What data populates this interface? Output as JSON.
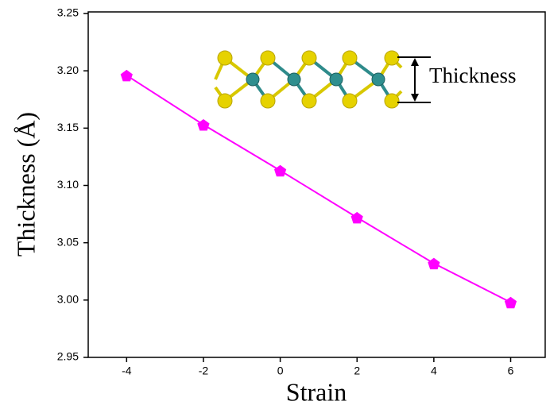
{
  "chart_data": {
    "type": "line",
    "xlabel": "Strain",
    "ylabel": "Thickness (Å)",
    "annotation": "Thickness",
    "x": [
      -4,
      -2,
      0,
      2,
      4,
      6
    ],
    "series": [
      {
        "color": "#ff00ff",
        "values": [
          3.196,
          3.153,
          3.113,
          3.072,
          3.032,
          2.998
        ]
      }
    ],
    "xlim": [
      -5,
      6.9
    ],
    "ylim": [
      2.95,
      3.25
    ],
    "xticks": [
      -4,
      -2,
      0,
      2,
      4,
      6
    ],
    "yticks": [
      2.95,
      {
        "value": 3.0,
        "label": "3.00"
      },
      3.05,
      {
        "value": 3.1,
        "label": "3.10"
      },
      3.15,
      {
        "value": 3.2,
        "label": "3.20"
      },
      3.25
    ],
    "marker": "pentagon"
  }
}
